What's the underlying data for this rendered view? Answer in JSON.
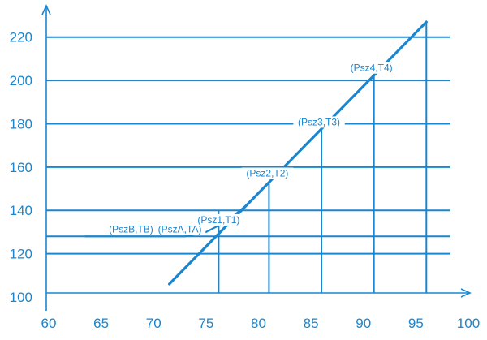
{
  "colors": {
    "primary": "#1a86cf",
    "background": "#ffffff"
  },
  "chart_data": {
    "type": "line",
    "title": "",
    "xlabel": "",
    "ylabel": "",
    "xlim": [
      60,
      100
    ],
    "ylim": [
      100,
      230
    ],
    "x_ticks": [
      60,
      65,
      70,
      75,
      80,
      85,
      90,
      95,
      100
    ],
    "y_ticks": [
      100,
      120,
      140,
      160,
      180,
      200,
      220
    ],
    "grid": {
      "horizontal": true,
      "gridline_y_values": [
        120,
        128,
        140,
        160,
        180,
        200,
        220
      ]
    },
    "series": [
      {
        "values": [
          {
            "x": 71.5,
            "y": 106
          },
          {
            "x": 96,
            "y": 227
          }
        ]
      },
      {
        "values": [
          {
            "x": 63.5,
            "y": 128
          },
          {
            "x": 73,
            "y": 128
          },
          {
            "x": 75,
            "y": 130
          },
          {
            "x": 77,
            "y": 135
          },
          {
            "x": 79,
            "y": 143
          }
        ]
      }
    ],
    "drop_lines_x": [
      76.2,
      81,
      86,
      91,
      96
    ],
    "points": [
      {
        "label": "(PszB,TB)",
        "x": 68,
        "y": 128
      },
      {
        "label": "(PszA,TA)",
        "x": 72.5,
        "y": 128
      },
      {
        "label": "(Psz1,T1)",
        "x": 76.2,
        "y": 130
      },
      {
        "label": "(Psz2,T2)",
        "x": 81,
        "y": 153
      },
      {
        "label": "(Psz3,T3)",
        "x": 86,
        "y": 177
      },
      {
        "label": "(Psz4,T4)",
        "x": 91,
        "y": 202
      }
    ]
  }
}
